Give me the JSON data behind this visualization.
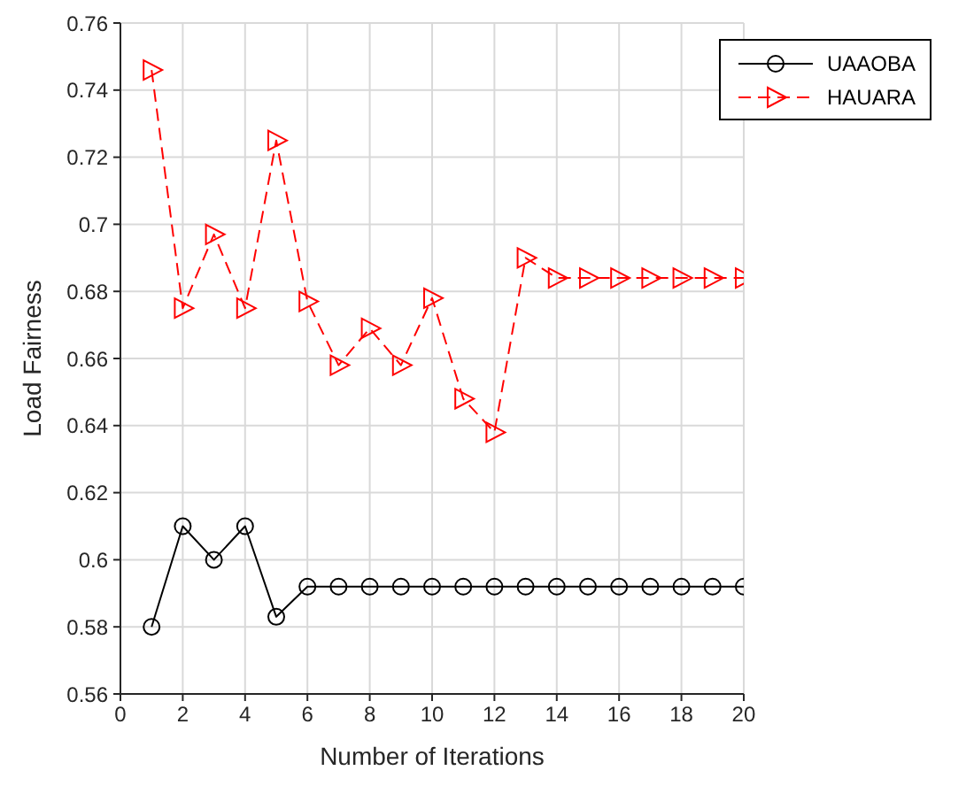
{
  "chart_data": {
    "type": "line",
    "xlabel": "Number of Iterations",
    "ylabel": "Load Fairness",
    "x": [
      1,
      2,
      3,
      4,
      5,
      6,
      7,
      8,
      9,
      10,
      11,
      12,
      13,
      14,
      15,
      16,
      17,
      18,
      19,
      20
    ],
    "xlim": [
      0,
      20
    ],
    "xticks": [
      0,
      2,
      4,
      6,
      8,
      10,
      12,
      14,
      16,
      18,
      20
    ],
    "ylim": [
      0.56,
      0.76
    ],
    "yticks": [
      0.56,
      0.58,
      0.6,
      0.62,
      0.64,
      0.66,
      0.68,
      0.7,
      0.72,
      0.74,
      0.76
    ],
    "grid": true,
    "legend": "top right",
    "series": [
      {
        "name": "UAAOBA",
        "color": "#000000",
        "marker": "circle",
        "line_style": "solid",
        "values": [
          0.58,
          0.61,
          0.6,
          0.61,
          0.583,
          0.592,
          0.592,
          0.592,
          0.592,
          0.592,
          0.592,
          0.592,
          0.592,
          0.592,
          0.592,
          0.592,
          0.592,
          0.592,
          0.592,
          0.592
        ]
      },
      {
        "name": "HAUARA",
        "color": "#ff0000",
        "marker": "triangle",
        "line_style": "dashed",
        "values": [
          0.746,
          0.675,
          0.697,
          0.675,
          0.725,
          0.677,
          0.658,
          0.669,
          0.658,
          0.678,
          0.648,
          0.638,
          0.69,
          0.684,
          0.684,
          0.684,
          0.684,
          0.684,
          0.684,
          0.684
        ]
      }
    ]
  }
}
